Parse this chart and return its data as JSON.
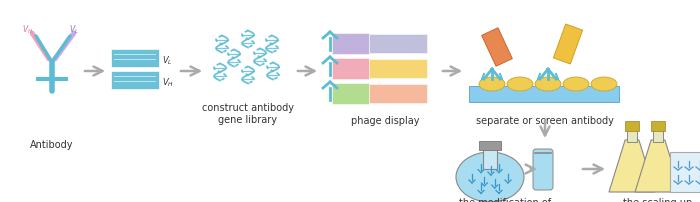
{
  "bg_color": "#ffffff",
  "arrow_color": "#aaaaaa",
  "text_color": "#333333",
  "ab_col": "#5bbcd4",
  "pink_col": "#f0a0b8",
  "purple_col": "#c8a8e8",
  "dna_col": "#5bbcd4",
  "labels": {
    "antibody": "Antibody",
    "gene_library": "construct antibody\ngene library",
    "phage_display": "phage display",
    "screen": "separate or screen antibody",
    "modification": "the modification of\nthe separated antibody",
    "scaling": "the scaling up\nproduction of antibody"
  }
}
